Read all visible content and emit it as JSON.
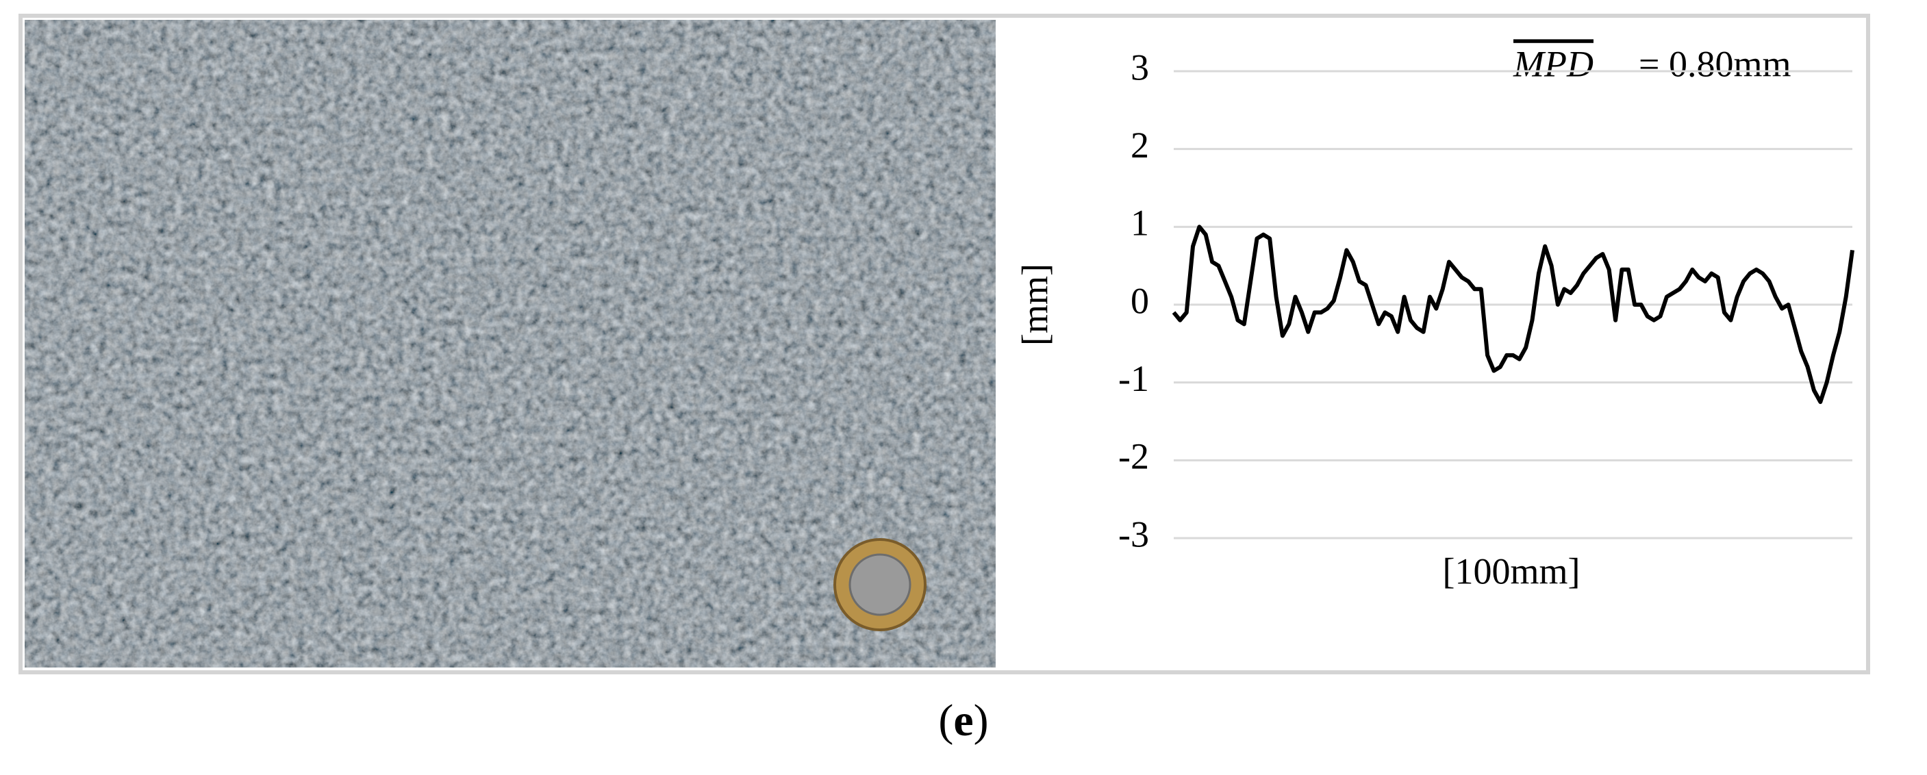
{
  "chart_data": {
    "type": "line",
    "annotation": {
      "symbol": "MPD",
      "text": "= 0.80mm"
    },
    "xlabel": "[100mm]",
    "ylabel": "[mm]",
    "values": [
      -0.1,
      -0.2,
      -0.1,
      0.75,
      1.0,
      0.9,
      0.55,
      0.5,
      0.3,
      0.1,
      -0.2,
      -0.25,
      0.3,
      0.85,
      0.9,
      0.85,
      0.1,
      -0.4,
      -0.25,
      0.1,
      -0.1,
      -0.35,
      -0.1,
      -0.1,
      -0.05,
      0.05,
      0.35,
      0.7,
      0.55,
      0.3,
      0.25,
      0,
      -0.25,
      -0.1,
      -0.15,
      -0.35,
      0.1,
      -0.2,
      -0.3,
      -0.35,
      0.1,
      -0.05,
      0.2,
      0.55,
      0.45,
      0.35,
      0.3,
      0.2,
      0.2,
      -0.65,
      -0.85,
      -0.8,
      -0.65,
      -0.65,
      -0.7,
      -0.55,
      -0.2,
      0.4,
      0.75,
      0.5,
      0,
      0.2,
      0.15,
      0.25,
      0.4,
      0.5,
      0.6,
      0.65,
      0.45,
      -0.2,
      0.45,
      0.45,
      0,
      0,
      -0.15,
      -0.2,
      -0.15,
      0.1,
      0.15,
      0.2,
      0.3,
      0.45,
      0.35,
      0.3,
      0.4,
      0.35,
      -0.1,
      -0.2,
      0.1,
      0.3,
      0.4,
      0.45,
      0.4,
      0.3,
      0.1,
      -0.05,
      0,
      -0.3,
      -0.6,
      -0.8,
      -1.1,
      -1.25,
      -1.0,
      -0.65,
      -0.35,
      0.1,
      0.7
    ],
    "color": "#000000",
    "ylim": [
      -3,
      3
    ],
    "yticks": [
      3,
      2,
      1,
      0,
      -1,
      -2,
      -3
    ],
    "grid": true
  },
  "caption": [
    "(",
    "e",
    ")"
  ]
}
